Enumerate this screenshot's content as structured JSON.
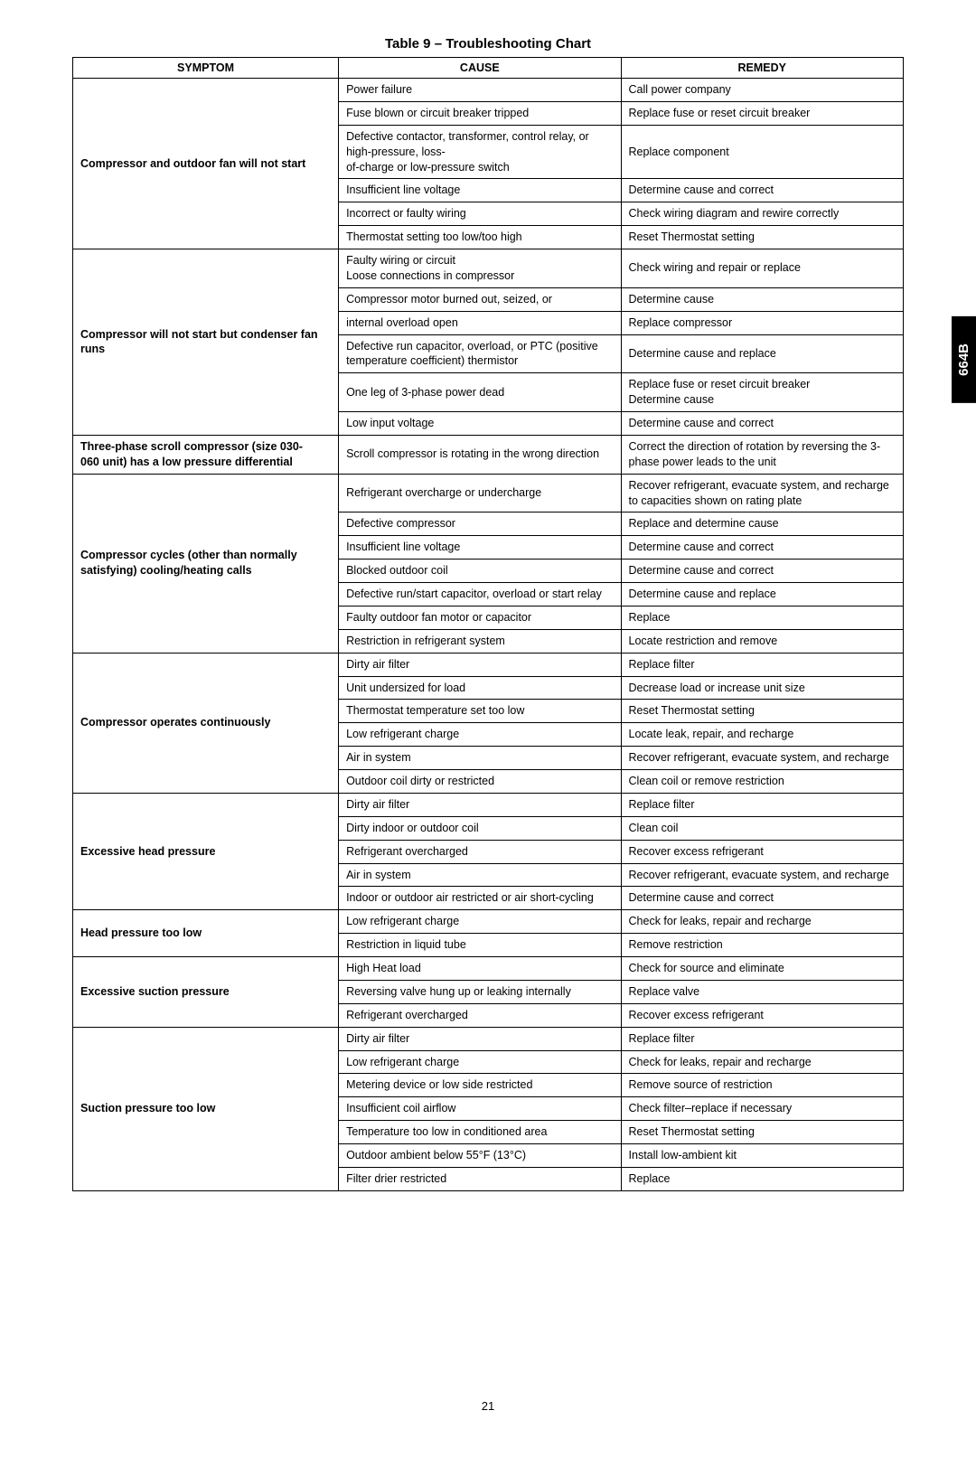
{
  "title": "Table 9 – Troubleshooting Chart",
  "pageNumber": "21",
  "sideTab": "664B",
  "columns": [
    "SYMPTOM",
    "CAUSE",
    "REMEDY"
  ],
  "sections": [
    {
      "symptom": "Compressor and outdoor fan will not start",
      "rows": [
        {
          "cause": "Power failure",
          "remedy": "Call power company"
        },
        {
          "cause": "Fuse blown or circuit breaker tripped",
          "remedy": "Replace fuse or reset circuit breaker"
        },
        {
          "cause": "Defective contactor, transformer, control relay, or high-pressure, loss-\nof-charge or low-pressure switch",
          "remedy": "Replace component"
        },
        {
          "cause": "Insufficient line voltage",
          "remedy": "Determine cause and correct"
        },
        {
          "cause": "Incorrect or faulty wiring",
          "remedy": "Check wiring diagram and rewire correctly"
        },
        {
          "cause": "Thermostat setting too low/too high",
          "remedy": "Reset Thermostat setting"
        }
      ]
    },
    {
      "symptom": "Compressor will not start but condenser fan runs",
      "rows": [
        {
          "cause": "Faulty wiring or circuit\nLoose connections in compressor",
          "remedy": "Check wiring and repair or replace"
        },
        {
          "cause": "Compressor motor burned out, seized, or",
          "remedy": "Determine cause"
        },
        {
          "cause": "internal overload open",
          "remedy": "Replace compressor"
        },
        {
          "cause": "Defective run capacitor, overload, or PTC (positive temperature coefficient) thermistor",
          "remedy": "Determine cause and replace"
        },
        {
          "cause": "One leg of 3-phase power dead",
          "remedy": "Replace fuse or reset circuit breaker\nDetermine cause"
        },
        {
          "cause": "Low input voltage",
          "remedy": "Determine cause and correct"
        }
      ]
    },
    {
      "symptom": "Three-phase scroll compressor (size 030-\n060 unit) has a low pressure differential",
      "rows": [
        {
          "cause": "Scroll compressor is rotating in the wrong direction",
          "remedy": "Correct the direction of rotation by reversing the 3-phase power leads to the unit"
        }
      ]
    },
    {
      "symptom": "Compressor cycles (other than normally satisfying) cooling/heating calls",
      "rows": [
        {
          "cause": "Refrigerant overcharge or undercharge",
          "remedy": "Recover refrigerant, evacuate system, and recharge to capacities shown on rating plate"
        },
        {
          "cause": "Defective compressor",
          "remedy": "Replace and determine cause"
        },
        {
          "cause": "Insufficient line voltage",
          "remedy": "Determine cause and correct"
        },
        {
          "cause": "Blocked outdoor coil",
          "remedy": "Determine cause and correct"
        },
        {
          "cause": "Defective run/start capacitor, overload or start relay",
          "remedy": "Determine cause and replace"
        },
        {
          "cause": "Faulty outdoor fan motor or capacitor",
          "remedy": "Replace"
        },
        {
          "cause": "Restriction in refrigerant system",
          "remedy": "Locate restriction and remove"
        }
      ]
    },
    {
      "symptom": "Compressor operates continuously",
      "rows": [
        {
          "cause": "Dirty air filter",
          "remedy": "Replace filter"
        },
        {
          "cause": "Unit undersized for load",
          "remedy": "Decrease load or increase unit size"
        },
        {
          "cause": "Thermostat temperature set too low",
          "remedy": "Reset Thermostat setting"
        },
        {
          "cause": "Low refrigerant charge",
          "remedy": "Locate leak, repair, and recharge"
        },
        {
          "cause": "Air in system",
          "remedy": "Recover refrigerant, evacuate system, and recharge"
        },
        {
          "cause": "Outdoor coil dirty or restricted",
          "remedy": "Clean coil or remove restriction"
        }
      ]
    },
    {
      "symptom": "Excessive head pressure",
      "rows": [
        {
          "cause": "Dirty air filter",
          "remedy": "Replace filter"
        },
        {
          "cause": "Dirty indoor or outdoor coil",
          "remedy": "Clean coil"
        },
        {
          "cause": "Refrigerant overcharged",
          "remedy": "Recover excess refrigerant"
        },
        {
          "cause": "Air in system",
          "remedy": "Recover refrigerant, evacuate system, and recharge"
        },
        {
          "cause": "Indoor or outdoor air restricted or air short-cycling",
          "remedy": "Determine cause and correct"
        }
      ]
    },
    {
      "symptom": "Head pressure too low",
      "rows": [
        {
          "cause": "Low refrigerant charge",
          "remedy": "Check for leaks, repair and recharge"
        },
        {
          "cause": "Restriction in liquid tube",
          "remedy": "Remove restriction"
        }
      ]
    },
    {
      "symptom": "Excessive suction pressure",
      "rows": [
        {
          "cause": "High Heat load",
          "remedy": "Check for source and eliminate"
        },
        {
          "cause": "Reversing valve hung up or leaking internally",
          "remedy": "Replace valve"
        },
        {
          "cause": "Refrigerant overcharged",
          "remedy": "Recover excess refrigerant"
        }
      ]
    },
    {
      "symptom": "Suction pressure too low",
      "rows": [
        {
          "cause": "Dirty air filter",
          "remedy": "Replace filter"
        },
        {
          "cause": "Low refrigerant charge",
          "remedy": "Check for leaks, repair and recharge"
        },
        {
          "cause": "Metering device or low side restricted",
          "remedy": "Remove source of restriction"
        },
        {
          "cause": "Insufficient coil airflow",
          "remedy": "Check filter–replace if necessary"
        },
        {
          "cause": "Temperature too low in conditioned area",
          "remedy": "Reset Thermostat setting"
        },
        {
          "cause": "Outdoor ambient below 55°F (13°C)",
          "remedy": "Install low-ambient kit"
        },
        {
          "cause": "Filter drier restricted",
          "remedy": "Replace"
        }
      ]
    }
  ]
}
